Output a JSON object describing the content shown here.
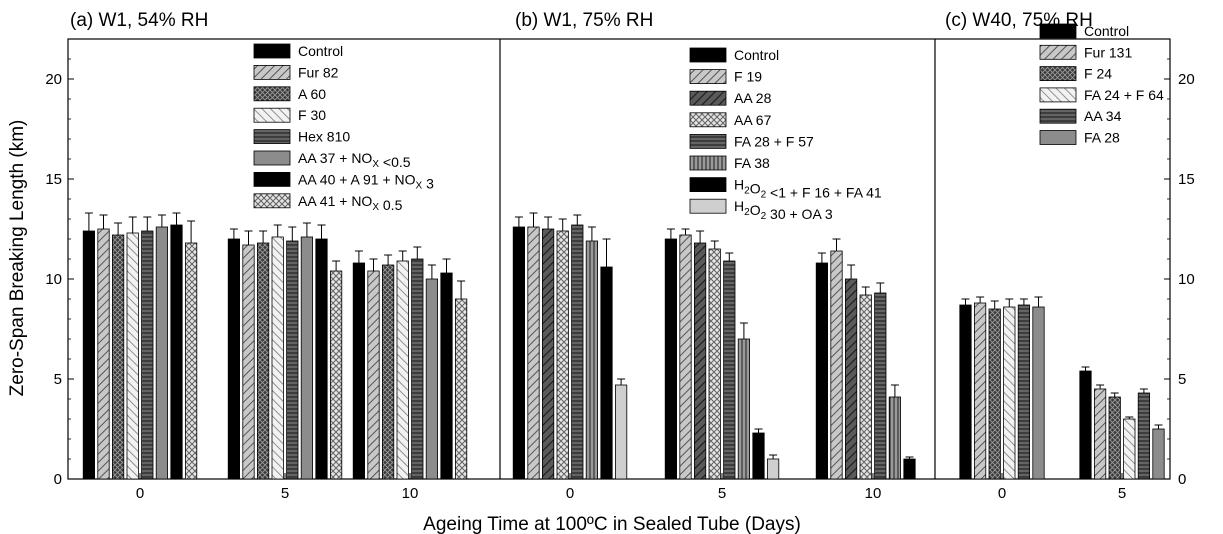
{
  "chart_data": {
    "type": "bar",
    "xlabel": "Ageing Time at 100ºC in Sealed Tube (Days)",
    "ylabel": "Zero-Span Breaking Length (km)",
    "ylim": [
      0,
      22
    ],
    "yticks": [
      0,
      5,
      10,
      15,
      20
    ],
    "panels": [
      {
        "title": "(a) W1, 54% RH",
        "categories": [
          "0",
          "5",
          "10"
        ],
        "series": [
          {
            "name": "Control",
            "pattern": "solid-black",
            "values": [
              12.4,
              12.0,
              10.8
            ],
            "errors": [
              0.9,
              0.5,
              0.6
            ]
          },
          {
            "name": "Fur 82",
            "pattern": "diag-gray",
            "values": [
              12.5,
              11.7,
              10.4
            ],
            "errors": [
              0.7,
              0.7,
              0.6
            ]
          },
          {
            "name": "A 60",
            "pattern": "crosshatch-dark",
            "values": [
              12.2,
              11.8,
              10.7
            ],
            "errors": [
              0.6,
              0.6,
              0.5
            ]
          },
          {
            "name": "F 30",
            "pattern": "diag-light",
            "values": [
              12.3,
              12.1,
              10.9
            ],
            "errors": [
              0.8,
              0.6,
              0.5
            ]
          },
          {
            "name": "Hex 810",
            "pattern": "hlines-dark",
            "values": [
              12.4,
              11.9,
              11.0
            ],
            "errors": [
              0.7,
              0.7,
              0.6
            ]
          },
          {
            "name": "AA 37 + NOx <0.5",
            "label_parts": [
              "AA 37 + NO",
              "X",
              " <0.5"
            ],
            "pattern": "solid-gray",
            "values": [
              12.6,
              12.1,
              10.0
            ],
            "errors": [
              0.6,
              0.7,
              0.7
            ]
          },
          {
            "name": "AA 40 + A 91 + NOx 3",
            "label_parts": [
              "AA 40 + A 91 + NO",
              "X",
              " 3"
            ],
            "pattern": "solid-black",
            "values": [
              12.7,
              12.0,
              10.3
            ],
            "errors": [
              0.6,
              0.7,
              0.7
            ]
          },
          {
            "name": "AA 41 + NOx 0.5",
            "label_parts": [
              "AA 41 + NO",
              "X",
              " 0.5"
            ],
            "pattern": "checker-light",
            "values": [
              11.8,
              10.4,
              9.0
            ],
            "errors": [
              1.1,
              0.5,
              0.9
            ]
          }
        ]
      },
      {
        "title": "(b) W1, 75% RH",
        "categories": [
          "0",
          "5",
          "10"
        ],
        "series": [
          {
            "name": "Control",
            "pattern": "solid-black",
            "values": [
              12.6,
              12.0,
              10.8
            ],
            "errors": [
              0.5,
              0.5,
              0.5
            ]
          },
          {
            "name": "F 19",
            "pattern": "diag-gray",
            "values": [
              12.6,
              12.2,
              11.4
            ],
            "errors": [
              0.7,
              0.3,
              0.6
            ]
          },
          {
            "name": "AA 28",
            "pattern": "diag-dark",
            "values": [
              12.5,
              11.8,
              10.0
            ],
            "errors": [
              0.6,
              0.6,
              0.7
            ]
          },
          {
            "name": "AA 67",
            "pattern": "checker-light",
            "values": [
              12.4,
              11.5,
              9.2
            ],
            "errors": [
              0.6,
              0.4,
              0.4
            ]
          },
          {
            "name": "FA 28 + F 57",
            "pattern": "hlines-dark",
            "values": [
              12.7,
              10.9,
              9.3
            ],
            "errors": [
              0.5,
              0.4,
              0.5
            ]
          },
          {
            "name": "FA 38",
            "pattern": "vlines-gray",
            "values": [
              11.9,
              7.0,
              4.1
            ],
            "errors": [
              0.7,
              0.8,
              0.6
            ]
          },
          {
            "name": "H2O2 <1 + F 16 + FA 41",
            "label_parts": [
              "H",
              "2",
              "O",
              "2",
              " <1 + F 16 + FA 41"
            ],
            "pattern": "solid-black",
            "values": [
              10.6,
              2.3,
              1.0
            ],
            "errors": [
              1.4,
              0.2,
              0.1
            ]
          },
          {
            "name": "H2O2 30 + OA 3",
            "label_parts": [
              "H",
              "2",
              "O",
              "2",
              " 30 + OA 3"
            ],
            "pattern": "solid-light",
            "values": [
              4.7,
              1.0,
              null
            ],
            "errors": [
              0.3,
              0.2,
              null
            ]
          }
        ]
      },
      {
        "title": "(c) W40, 75% RH",
        "categories": [
          "0",
          "5"
        ],
        "series": [
          {
            "name": "Control",
            "pattern": "solid-black",
            "values": [
              8.7,
              5.4
            ],
            "errors": [
              0.3,
              0.2
            ]
          },
          {
            "name": "Fur 131",
            "pattern": "diag-gray",
            "values": [
              8.8,
              4.5
            ],
            "errors": [
              0.3,
              0.2
            ]
          },
          {
            "name": "F 24",
            "pattern": "crosshatch-dark",
            "values": [
              8.5,
              4.1
            ],
            "errors": [
              0.4,
              0.2
            ]
          },
          {
            "name": "FA 24 + F 64",
            "pattern": "diag-light",
            "values": [
              8.6,
              3.0
            ],
            "errors": [
              0.4,
              0.1
            ]
          },
          {
            "name": "AA 34",
            "pattern": "hlines-dark",
            "values": [
              8.7,
              4.3
            ],
            "errors": [
              0.3,
              0.2
            ]
          },
          {
            "name": "FA 28",
            "pattern": "solid-gray",
            "values": [
              8.6,
              2.5
            ],
            "errors": [
              0.5,
              0.2
            ]
          }
        ]
      }
    ]
  }
}
